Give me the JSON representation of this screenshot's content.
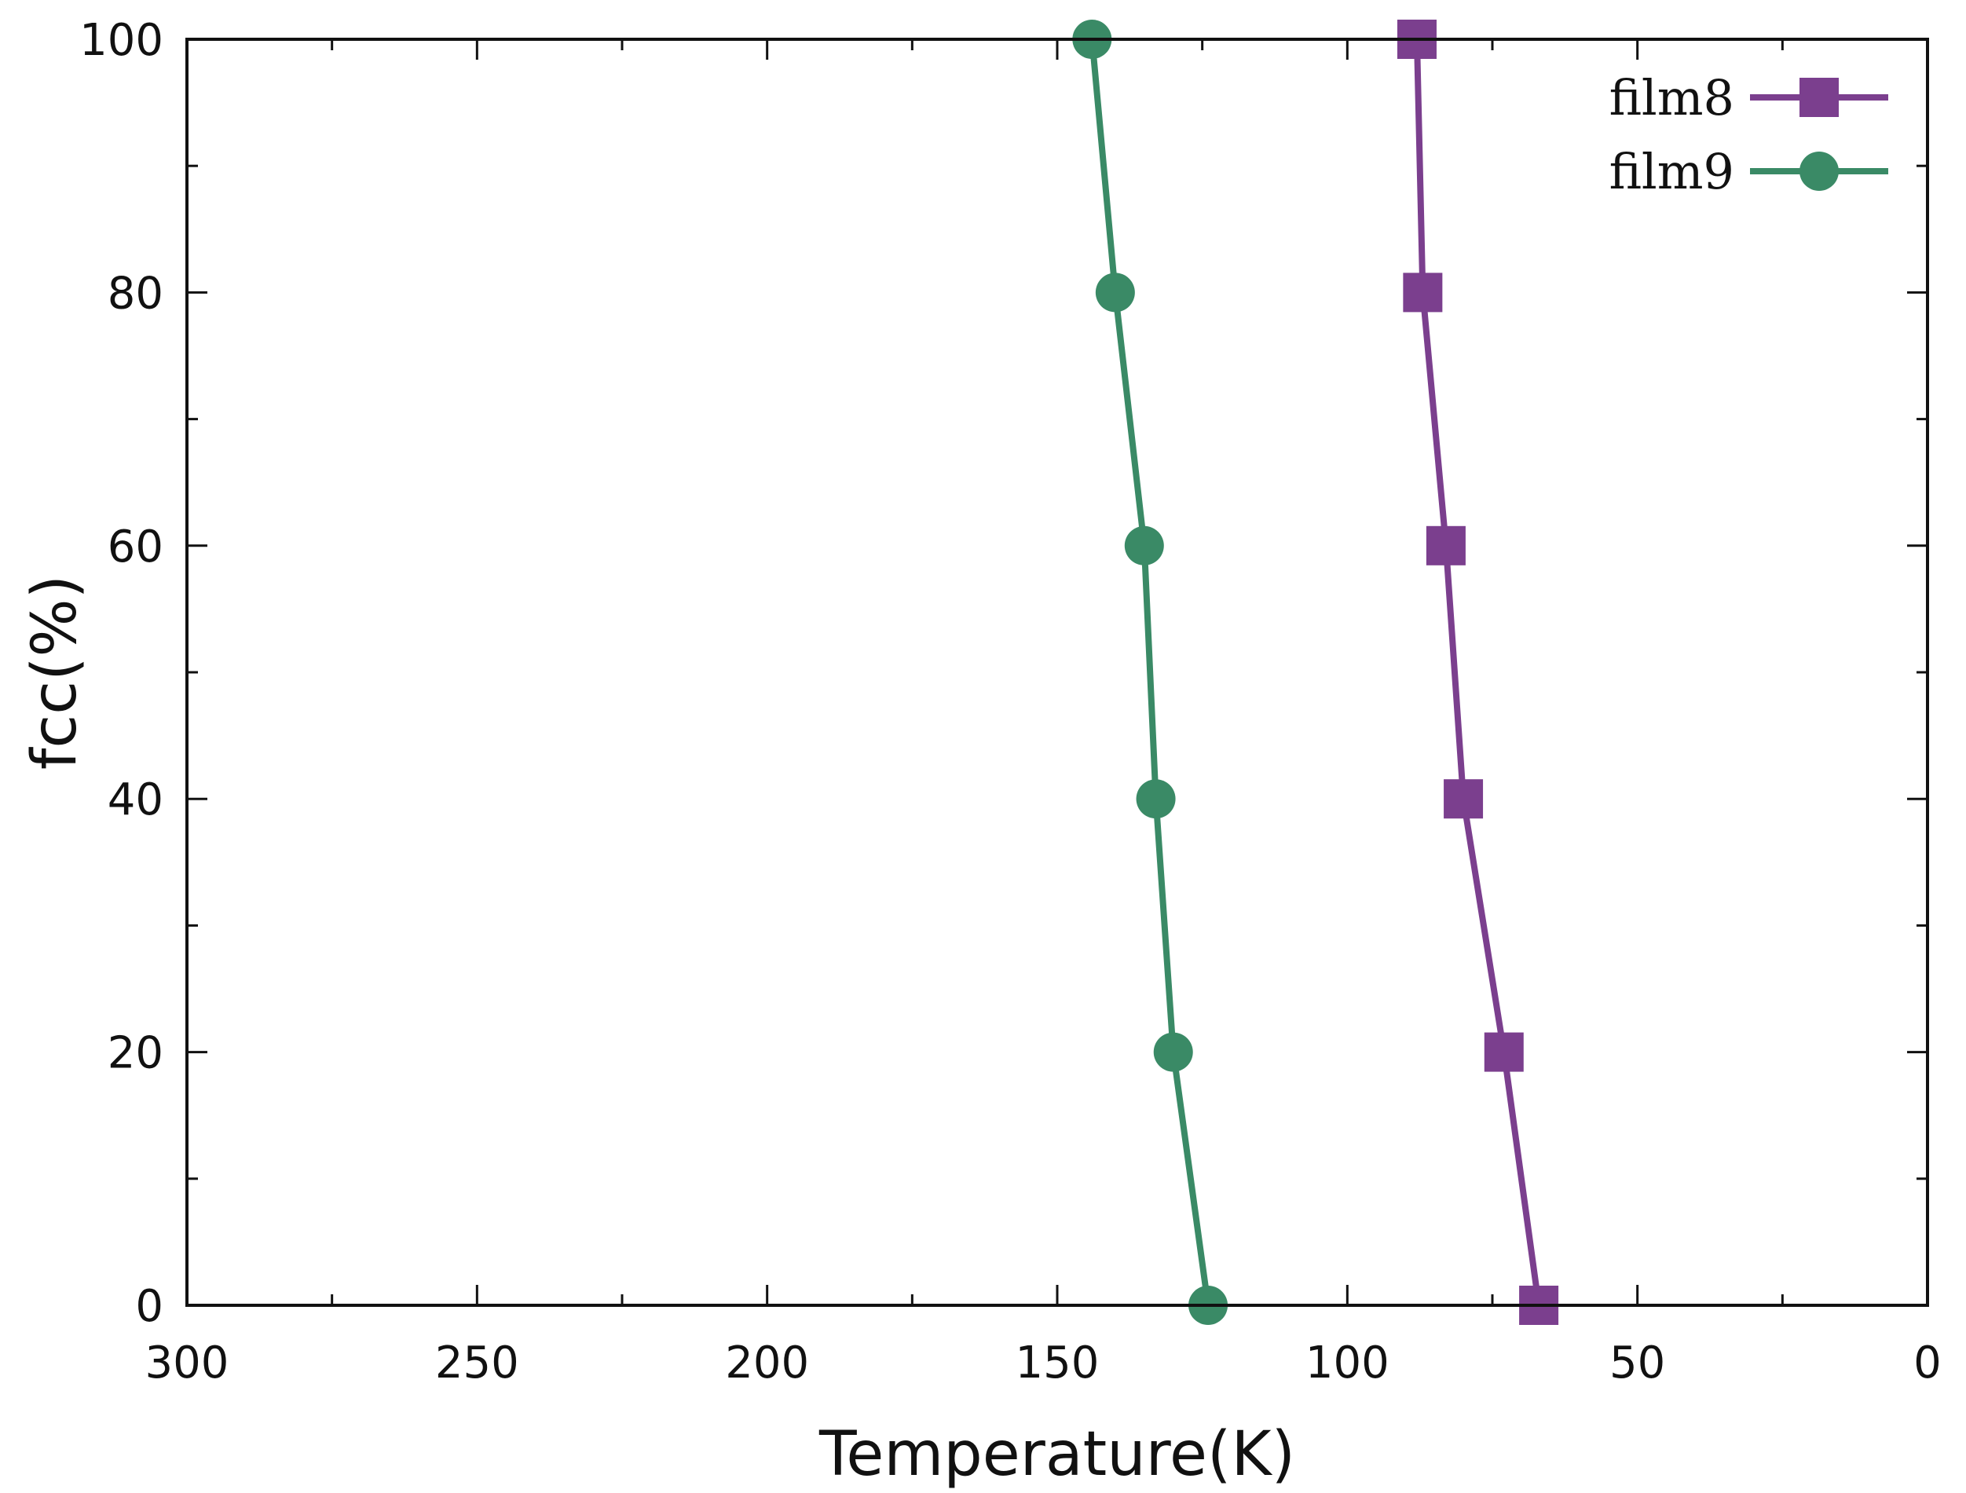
{
  "chart_data": {
    "type": "line",
    "xlabel": "Temperature(K)",
    "ylabel": "fcc(%)",
    "xlim": [
      300,
      0
    ],
    "ylim": [
      0,
      100
    ],
    "x_ticks": [
      300,
      250,
      200,
      150,
      100,
      50,
      0
    ],
    "y_ticks": [
      0,
      20,
      40,
      60,
      80,
      100
    ],
    "x_minor_step": 25,
    "y_minor_step": 10,
    "grid": false,
    "legend_position": "top-right",
    "series": [
      {
        "name": "film8",
        "color": "#7B3F8E",
        "marker": "square",
        "points": [
          {
            "x": 67,
            "y": 0
          },
          {
            "x": 73,
            "y": 20
          },
          {
            "x": 80,
            "y": 40
          },
          {
            "x": 83,
            "y": 60
          },
          {
            "x": 87,
            "y": 80
          },
          {
            "x": 88,
            "y": 100
          }
        ]
      },
      {
        "name": "film9",
        "color": "#3A8A66",
        "marker": "circle",
        "points": [
          {
            "x": 124,
            "y": 0
          },
          {
            "x": 130,
            "y": 20
          },
          {
            "x": 133,
            "y": 40
          },
          {
            "x": 135,
            "y": 60
          },
          {
            "x": 140,
            "y": 80
          },
          {
            "x": 144,
            "y": 100
          }
        ]
      }
    ]
  }
}
